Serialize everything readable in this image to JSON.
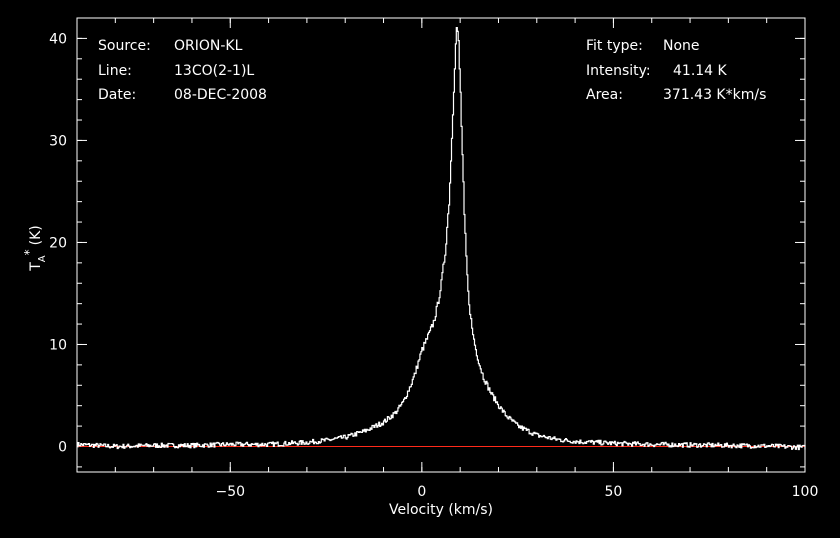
{
  "chart_data": {
    "type": "line",
    "xlabel": "Velocity (km/s)",
    "ylabel": "T",
    "ylabel_sub": "A",
    "ylabel_sup": "*",
    "ylabel_unit": "(K)",
    "xlim": [
      -90,
      100
    ],
    "ylim": [
      -2.5,
      42
    ],
    "xticks": [
      -50,
      0,
      50,
      100
    ],
    "xtick_labels": [
      "−50",
      "0",
      "50",
      "100"
    ],
    "yticks": [
      0,
      10,
      20,
      30,
      40
    ],
    "ytick_labels": [
      "0",
      "10",
      "20",
      "30",
      "40"
    ],
    "x_minor_step": 10,
    "y_minor_step": 2,
    "grid": false,
    "colors": {
      "background": "#000000",
      "spectrum": "#ffffff",
      "baseline": "#ff2a1a",
      "axes": "#ffffff"
    },
    "series": [
      {
        "x": [
          -90,
          -80,
          -70,
          -60,
          -50,
          -40,
          -30,
          -25,
          -20,
          -15,
          -10,
          -7,
          -5,
          -3,
          -2,
          0,
          2,
          3,
          4,
          5,
          6,
          7,
          7.5,
          8,
          8.5,
          9,
          9.5,
          10,
          10.5,
          11,
          11.5,
          12,
          13,
          14,
          15,
          16,
          18,
          20,
          22,
          25,
          30,
          35,
          40,
          50,
          60,
          70,
          80,
          90,
          100
        ],
        "y": [
          0.2,
          0.0,
          0.1,
          0.1,
          0.2,
          0.2,
          0.4,
          0.6,
          0.9,
          1.5,
          2.4,
          3.3,
          4.3,
          6.0,
          7.0,
          9.5,
          11.2,
          12.2,
          13.8,
          16.0,
          19.0,
          24.0,
          28.0,
          33.0,
          37.5,
          41.1,
          39.5,
          34.5,
          28.5,
          22.5,
          18.5,
          15.0,
          11.5,
          9.5,
          8.0,
          6.8,
          5.2,
          4.0,
          3.0,
          2.0,
          1.1,
          0.7,
          0.5,
          0.3,
          0.2,
          0.15,
          0.1,
          0.05,
          -0.1
        ]
      }
    ],
    "baseline": 0
  },
  "annotations": {
    "left": [
      {
        "key": "Source:",
        "value": "ORION-KL"
      },
      {
        "key": "Line:",
        "value": "13CO(2-1)L"
      },
      {
        "key": "Date:",
        "value": "08-DEC-2008"
      }
    ],
    "right": [
      {
        "key": "Fit type:",
        "value": "None"
      },
      {
        "key": "Intensity:",
        "value": "41.14 K"
      },
      {
        "key": "Area:",
        "value": "371.43 K*km/s"
      }
    ]
  }
}
